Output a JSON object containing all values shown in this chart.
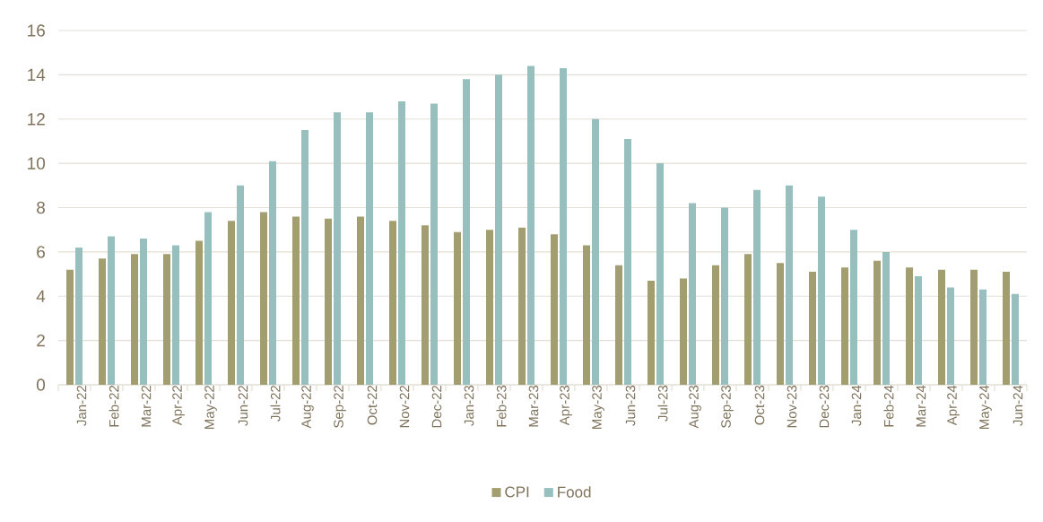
{
  "chart_data": {
    "type": "bar",
    "categories": [
      "Jan-22",
      "Feb-22",
      "Mar-22",
      "Apr-22",
      "May-22",
      "Jun-22",
      "Jul-22",
      "Aug-22",
      "Sep-22",
      "Oct-22",
      "Nov-22",
      "Dec-22",
      "Jan-23",
      "Feb-23",
      "Mar-23",
      "Apr-23",
      "May-23",
      "Jun-23",
      "Jul-23",
      "Aug-23",
      "Sep-23",
      "Oct-23",
      "Nov-23",
      "Dec-23",
      "Jan-24",
      "Feb-24",
      "Mar-24",
      "Apr-24",
      "May-24",
      "Jun-24"
    ],
    "series": [
      {
        "name": "CPI",
        "color": "#a39e70",
        "values": [
          5.2,
          5.7,
          5.9,
          5.9,
          6.5,
          7.4,
          7.8,
          7.6,
          7.5,
          7.6,
          7.4,
          7.2,
          6.9,
          7.0,
          7.1,
          6.8,
          6.3,
          5.4,
          4.7,
          4.8,
          5.4,
          5.9,
          5.5,
          5.1,
          5.3,
          5.6,
          5.3,
          5.2,
          5.2,
          5.1
        ]
      },
      {
        "name": "Food",
        "color": "#96bfbd",
        "values": [
          6.2,
          6.7,
          6.6,
          6.3,
          7.8,
          9.0,
          10.1,
          11.5,
          12.3,
          12.3,
          12.8,
          12.7,
          13.8,
          14.0,
          14.4,
          14.3,
          12.0,
          11.1,
          10.0,
          8.2,
          8.0,
          8.8,
          9.0,
          8.5,
          7.0,
          6.0,
          4.9,
          4.4,
          4.3,
          4.1
        ]
      }
    ],
    "ylim": [
      0,
      16
    ],
    "yticks": [
      0,
      2,
      4,
      6,
      8,
      10,
      12,
      14,
      16
    ],
    "grid": "y",
    "legend": "bottom"
  }
}
